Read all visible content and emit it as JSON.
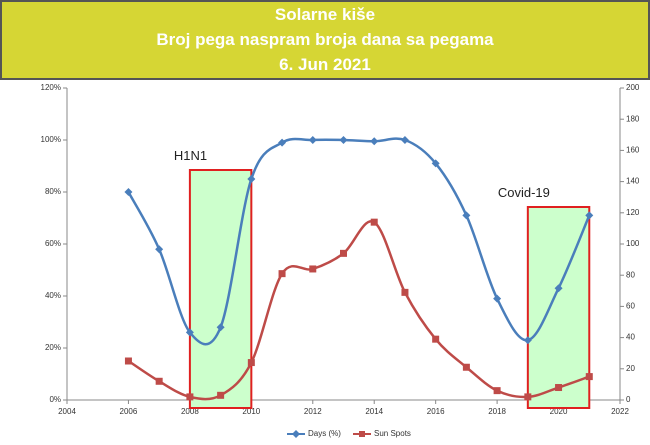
{
  "chart_data": {
    "type": "line",
    "title": [
      "Solarne kiše",
      "Broj pega naspram broja dana sa pegama",
      "6. Jun 2021"
    ],
    "x": [
      2006,
      2007,
      2008,
      2009,
      2010,
      2011,
      2012,
      2013,
      2014,
      2015,
      2016,
      2017,
      2018,
      2019,
      2020,
      2021
    ],
    "series": [
      {
        "name": "Days (%)",
        "color": "#4a7ebb",
        "marker": "diamond",
        "values": [
          80,
          58,
          26,
          28,
          85,
          99,
          100,
          100,
          99.5,
          100,
          91,
          71,
          39,
          23,
          43,
          71
        ]
      },
      {
        "name": "Sun Spots",
        "color": "#be4b48",
        "marker": "square",
        "axis": "y2",
        "values": [
          25,
          12,
          2,
          3,
          24,
          81,
          84,
          94,
          114,
          69,
          39,
          21,
          6,
          2,
          8,
          15
        ]
      }
    ],
    "xlim": [
      2004,
      2022
    ],
    "xticks": [
      2004,
      2006,
      2008,
      2010,
      2012,
      2014,
      2016,
      2018,
      2020,
      2022
    ],
    "ylim": [
      0,
      120
    ],
    "yticks": [
      {
        "value": 0,
        "label": "0%"
      },
      {
        "value": 20,
        "label": "20%"
      },
      {
        "value": 40,
        "label": "40%"
      },
      {
        "value": 60,
        "label": "60%"
      },
      {
        "value": 80,
        "label": "80%"
      },
      {
        "value": 100,
        "label": "100%"
      },
      {
        "value": 120,
        "label": "120%"
      }
    ],
    "y2lim": [
      0,
      200
    ],
    "y2ticks": [
      0,
      20,
      40,
      60,
      80,
      100,
      120,
      140,
      160,
      180,
      200
    ],
    "highlights": [
      {
        "label": "H1N1",
        "from": 2008,
        "to": 2010
      },
      {
        "label": "Covid-19",
        "from": 2019,
        "to": 2021
      }
    ],
    "legend": "bottom"
  }
}
